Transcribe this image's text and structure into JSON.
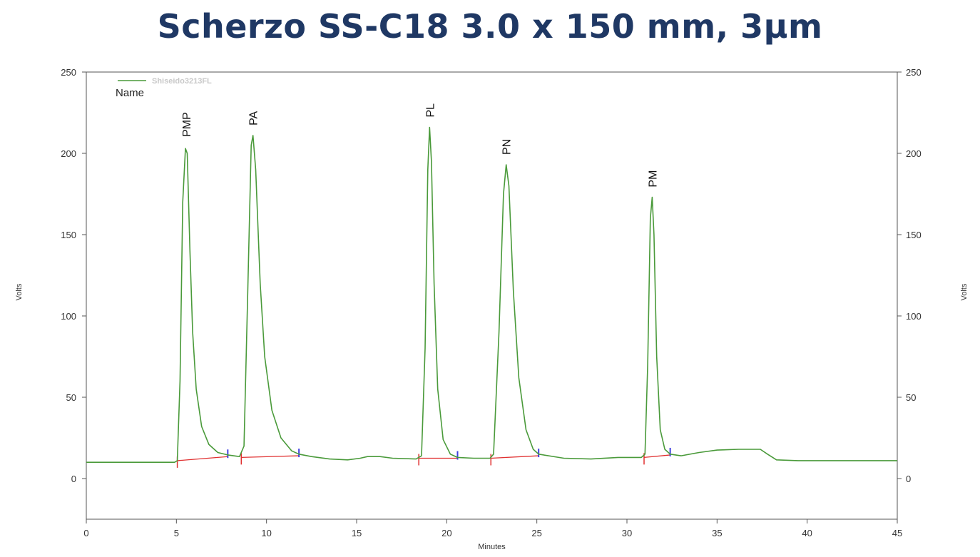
{
  "chart_data": {
    "type": "line",
    "title": "Scherzo SS-C18 3.0 x 150 mm, 3µm",
    "xlabel": "Minutes",
    "ylabel": "Volts",
    "y2label": "Volts",
    "xlim": [
      0,
      45
    ],
    "ylim": [
      -25,
      250
    ],
    "x_ticks": [
      0,
      5,
      10,
      15,
      20,
      25,
      30,
      35,
      40,
      45
    ],
    "y_ticks": [
      0,
      50,
      100,
      150,
      200,
      250
    ],
    "legend": {
      "series_name": "Shiseido3213FL",
      "position": "top-left",
      "subtitle": "Name"
    },
    "colors": {
      "trace": "#4a9a3a",
      "baseline": "#e03030",
      "marker": "#4040e0",
      "title": "#1f3864"
    },
    "baseline_level": 10,
    "peaks": [
      {
        "label": "PMP",
        "rt": 5.55,
        "height": 204,
        "start": 5.05,
        "end": 7.85,
        "base_start": 11,
        "base_end": 13.5
      },
      {
        "label": "PA",
        "rt": 9.25,
        "height": 211,
        "start": 8.6,
        "end": 11.8,
        "base_start": 13,
        "base_end": 14
      },
      {
        "label": "PL",
        "rt": 19.05,
        "height": 216,
        "start": 18.45,
        "end": 20.6,
        "base_start": 12.5,
        "base_end": 12.5
      },
      {
        "label": "PN",
        "rt": 23.3,
        "height": 193,
        "start": 22.45,
        "end": 25.1,
        "base_start": 12.5,
        "base_end": 14
      },
      {
        "label": "PM",
        "rt": 31.4,
        "height": 173,
        "start": 30.95,
        "end": 32.4,
        "base_start": 13,
        "base_end": 14.5
      }
    ],
    "series": [
      {
        "name": "Shiseido3213FL",
        "points": [
          [
            0,
            10
          ],
          [
            4.9,
            10
          ],
          [
            5.05,
            11
          ],
          [
            5.2,
            60
          ],
          [
            5.35,
            170
          ],
          [
            5.5,
            203
          ],
          [
            5.6,
            200
          ],
          [
            5.75,
            140
          ],
          [
            5.9,
            90
          ],
          [
            6.1,
            55
          ],
          [
            6.4,
            32
          ],
          [
            6.8,
            21
          ],
          [
            7.3,
            16
          ],
          [
            7.85,
            14.5
          ],
          [
            8.5,
            13.5
          ],
          [
            8.75,
            20
          ],
          [
            8.95,
            110
          ],
          [
            9.15,
            205
          ],
          [
            9.25,
            211
          ],
          [
            9.4,
            190
          ],
          [
            9.65,
            120
          ],
          [
            9.9,
            75
          ],
          [
            10.3,
            42
          ],
          [
            10.8,
            25
          ],
          [
            11.4,
            17
          ],
          [
            11.8,
            15
          ],
          [
            12.5,
            13.5
          ],
          [
            13.5,
            12
          ],
          [
            14.5,
            11.5
          ],
          [
            15.2,
            12.5
          ],
          [
            15.6,
            13.5
          ],
          [
            16.3,
            13.5
          ],
          [
            17,
            12.5
          ],
          [
            18.3,
            12
          ],
          [
            18.6,
            14
          ],
          [
            18.8,
            80
          ],
          [
            18.95,
            190
          ],
          [
            19.05,
            216
          ],
          [
            19.15,
            195
          ],
          [
            19.3,
            120
          ],
          [
            19.5,
            55
          ],
          [
            19.8,
            24
          ],
          [
            20.2,
            15
          ],
          [
            20.6,
            13
          ],
          [
            21.5,
            12.5
          ],
          [
            22.4,
            12.5
          ],
          [
            22.6,
            15
          ],
          [
            22.9,
            90
          ],
          [
            23.15,
            175
          ],
          [
            23.3,
            193
          ],
          [
            23.45,
            180
          ],
          [
            23.7,
            115
          ],
          [
            24.0,
            62
          ],
          [
            24.4,
            30
          ],
          [
            24.8,
            18
          ],
          [
            25.1,
            15
          ],
          [
            26.5,
            12.5
          ],
          [
            28,
            12
          ],
          [
            29.5,
            13
          ],
          [
            30.8,
            13
          ],
          [
            31.0,
            15
          ],
          [
            31.15,
            70
          ],
          [
            31.3,
            160
          ],
          [
            31.4,
            173
          ],
          [
            31.5,
            150
          ],
          [
            31.65,
            75
          ],
          [
            31.85,
            30
          ],
          [
            32.1,
            18
          ],
          [
            32.4,
            15
          ],
          [
            33,
            14
          ],
          [
            34,
            16
          ],
          [
            35,
            17.5
          ],
          [
            36.2,
            18
          ],
          [
            37.4,
            18
          ],
          [
            37.8,
            15
          ],
          [
            38.3,
            11.5
          ],
          [
            39.5,
            11
          ],
          [
            45,
            11
          ]
        ]
      }
    ]
  }
}
